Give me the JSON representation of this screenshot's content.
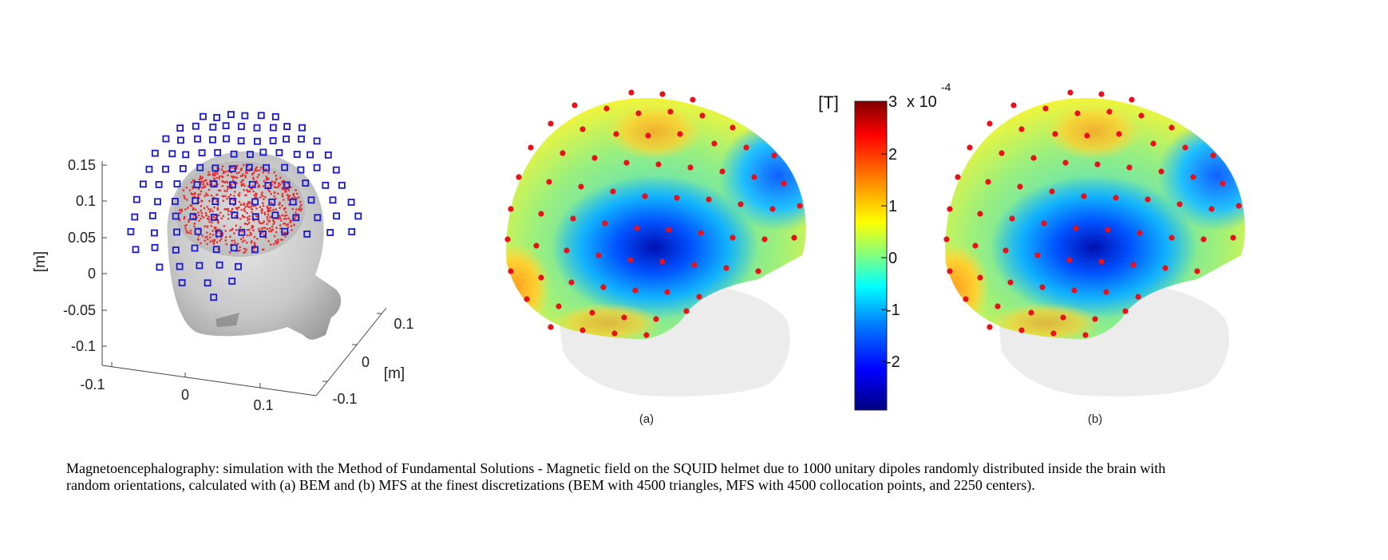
{
  "panel_3d": {
    "zticks": [
      "0.15",
      "0.1",
      "0.05",
      "0",
      "-0.05",
      "-0.1"
    ],
    "zlabel": "[m]",
    "xticks": [
      "-0.1",
      "0",
      "0.1"
    ],
    "yticks": [
      "0.1",
      "0",
      "-0.1"
    ],
    "ylabel": "[m]"
  },
  "panel_a": {
    "label": "(a)"
  },
  "panel_b": {
    "label": "(b)"
  },
  "colorbar": {
    "unit": "[T]",
    "multiplier": "x 10",
    "exponent": "-4",
    "ticks": [
      "3",
      "2",
      "1",
      "0",
      "-1",
      "-2"
    ],
    "colors": [
      "#800000",
      "#ff0000",
      "#ff8000",
      "#ffff00",
      "#80ff80",
      "#00ffff",
      "#0080ff",
      "#0000ff",
      "#000080"
    ]
  },
  "caption": {
    "line1": "Magnetoencephalography: simulation with the Method of Fundamental Solutions - Magnetic field on the SQUID helmet due to 1000 unitary dipoles randomly distributed inside the brain with",
    "line2": "random orientations, calculated with (a) BEM and (b) MFS at the finest discretizations (BEM with 4500 triangles, MFS with 4500 collocation points, and 2250 centers)."
  }
}
